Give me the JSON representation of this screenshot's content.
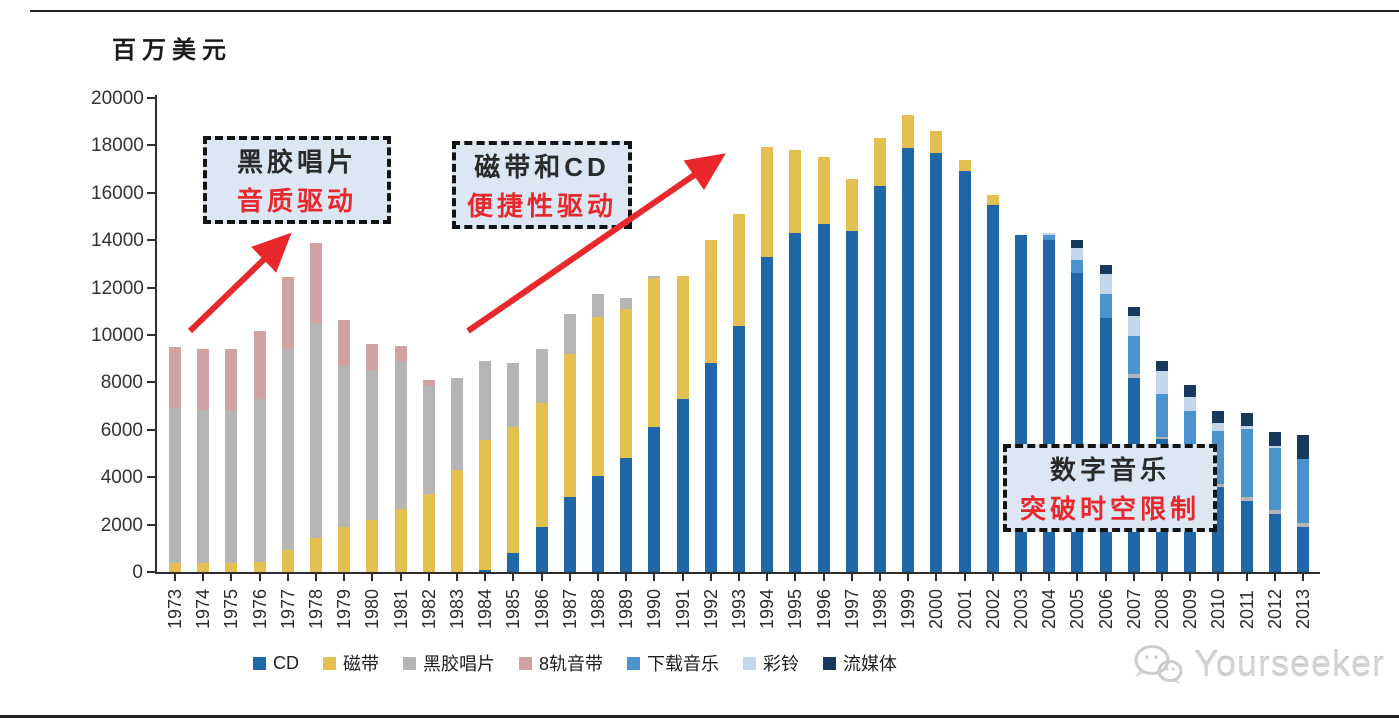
{
  "page": {
    "unit_label": "百万美元",
    "watermark_text": "Yourseeker"
  },
  "annotations": [
    {
      "id": "vinyl-era",
      "line1": "黑胶唱片",
      "line2": "音质驱动"
    },
    {
      "id": "tape-cd-era",
      "line1": "磁带和CD",
      "line2": "便捷性驱动"
    },
    {
      "id": "digital-era",
      "line1": "数字音乐",
      "line2": "突破时空限制"
    }
  ],
  "colors": {
    "accent_red": "#e8282d",
    "axis": "#2e2e2e",
    "annotation_fill": "#dde7f3",
    "annotation_border": "#141414",
    "watermark_gray": "#cccccc"
  },
  "chart_data": {
    "type": "bar",
    "stacked": true,
    "title": "",
    "xlabel": "",
    "ylabel": "百万美元",
    "ylim": [
      0,
      20000
    ],
    "ytick_step": 2000,
    "grid": false,
    "legend_position": "bottom",
    "categories": [
      1973,
      1974,
      1975,
      1976,
      1977,
      1978,
      1979,
      1980,
      1981,
      1982,
      1983,
      1984,
      1985,
      1986,
      1987,
      1988,
      1989,
      1990,
      1991,
      1992,
      1993,
      1994,
      1995,
      1996,
      1997,
      1998,
      1999,
      2000,
      2001,
      2002,
      2003,
      2004,
      2005,
      2006,
      2007,
      2008,
      2009,
      2010,
      2011,
      2012,
      2013
    ],
    "series": [
      {
        "name": "CD",
        "color": "#2067a8",
        "values": [
          0,
          0,
          0,
          0,
          0,
          0,
          0,
          0,
          0,
          0,
          0,
          100,
          800,
          1900,
          3150,
          4050,
          4800,
          6100,
          7300,
          8800,
          10400,
          13300,
          14300,
          14700,
          14400,
          16300,
          17900,
          17700,
          16900,
          15500,
          14200,
          14000,
          12600,
          10700,
          8200,
          5600,
          4400,
          3600,
          3000,
          2450,
          1900
        ]
      },
      {
        "name": "磁带",
        "color": "#e3c050",
        "values": [
          400,
          400,
          400,
          420,
          930,
          1420,
          1900,
          2200,
          2650,
          3300,
          4300,
          5450,
          5300,
          5250,
          6050,
          6700,
          6300,
          6300,
          5200,
          5200,
          4700,
          4650,
          3500,
          2800,
          2200,
          2000,
          1400,
          900,
          500,
          400,
          0,
          0,
          0,
          0,
          0,
          0,
          0,
          0,
          0,
          0,
          0
        ]
      },
      {
        "name": "黑胶唱片",
        "color": "#b5b5b5",
        "values": [
          6500,
          6450,
          6450,
          6900,
          8460,
          9070,
          6790,
          6330,
          6250,
          4550,
          3900,
          3350,
          2700,
          2250,
          1700,
          1000,
          450,
          100,
          0,
          0,
          0,
          0,
          0,
          0,
          0,
          0,
          0,
          0,
          0,
          0,
          0,
          0,
          0,
          0,
          140,
          100,
          100,
          100,
          150,
          150,
          170
        ]
      },
      {
        "name": "8轨音带",
        "color": "#d2a2a2",
        "values": [
          2600,
          2550,
          2550,
          2830,
          3060,
          3400,
          1950,
          1100,
          620,
          250,
          0,
          0,
          0,
          0,
          0,
          0,
          0,
          0,
          0,
          0,
          0,
          0,
          0,
          0,
          0,
          0,
          0,
          0,
          0,
          0,
          0,
          0,
          0,
          0,
          0,
          0,
          0,
          0,
          0,
          0,
          0
        ]
      },
      {
        "name": "下载音乐",
        "color": "#4b93cf",
        "values": [
          0,
          0,
          0,
          0,
          0,
          0,
          0,
          0,
          0,
          0,
          0,
          0,
          0,
          0,
          0,
          0,
          0,
          0,
          0,
          0,
          0,
          0,
          0,
          0,
          0,
          0,
          0,
          0,
          0,
          0,
          0,
          200,
          560,
          1030,
          1600,
          1800,
          2300,
          2250,
          2900,
          2650,
          2700
        ]
      },
      {
        "name": "彩铃",
        "color": "#c3d6ea",
        "values": [
          0,
          0,
          0,
          0,
          0,
          0,
          0,
          0,
          0,
          0,
          0,
          0,
          0,
          0,
          0,
          0,
          0,
          0,
          0,
          0,
          0,
          0,
          0,
          0,
          0,
          0,
          0,
          0,
          0,
          0,
          0,
          100,
          490,
          840,
          870,
          1000,
          600,
          350,
          100,
          50,
          0
        ]
      },
      {
        "name": "流媒体",
        "color": "#17395d",
        "values": [
          0,
          0,
          0,
          0,
          0,
          0,
          0,
          0,
          0,
          0,
          0,
          0,
          0,
          0,
          0,
          0,
          0,
          0,
          0,
          0,
          0,
          0,
          0,
          0,
          0,
          0,
          0,
          0,
          0,
          0,
          0,
          0,
          350,
          380,
          390,
          400,
          500,
          500,
          550,
          600,
          1000
        ]
      }
    ]
  }
}
